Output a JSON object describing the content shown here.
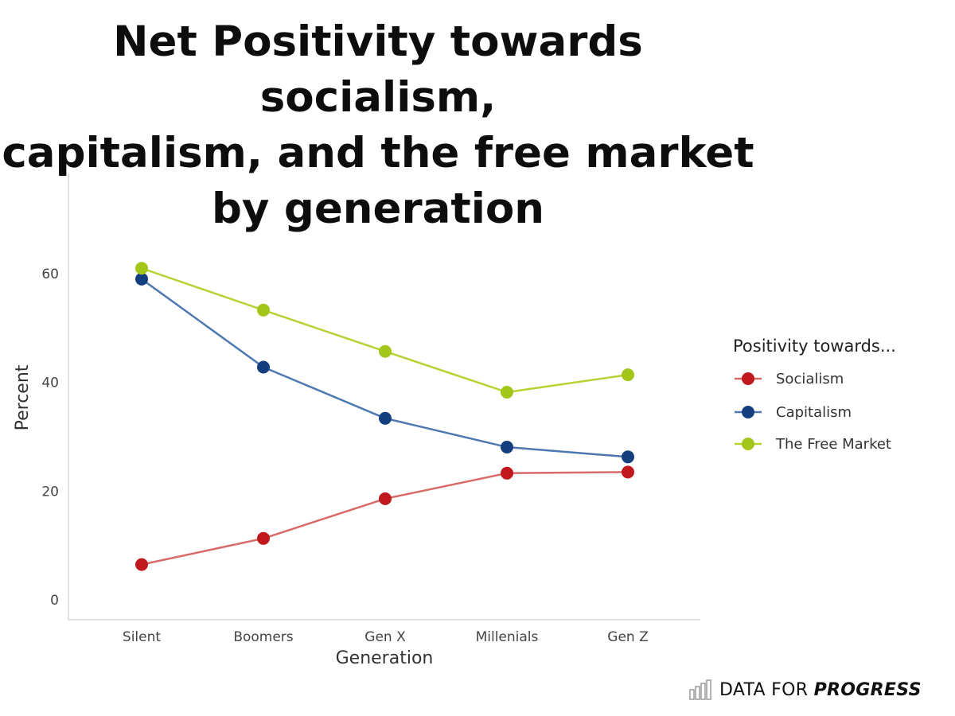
{
  "chart_data": {
    "type": "line",
    "title_lines": [
      "Net Positivity towards socialism,",
      "capitalism, and the free market",
      "by generation"
    ],
    "xlabel": "Generation",
    "ylabel": "Percent",
    "categories": [
      "Silent",
      "Boomers",
      "Gen X",
      "Millenials",
      "Gen Z"
    ],
    "ylim": [
      0,
      80
    ],
    "yticks": [
      0,
      20,
      40,
      60
    ],
    "grid": false,
    "legend": {
      "title": "Positivity towards...",
      "placement": "right"
    },
    "series": [
      {
        "name": "Socialism",
        "color": "#c0181d",
        "line_color": "#d86a6a",
        "values": [
          6.5,
          11.3,
          18.6,
          23.3,
          23.5
        ]
      },
      {
        "name": "Capitalism",
        "color": "#143f7f",
        "line_color": "#4e78b0",
        "values": [
          59,
          42.8,
          33.4,
          28.1,
          26.3
        ]
      },
      {
        "name": "The Free Market",
        "color": "#a4c61a",
        "line_color": "#b5d334",
        "values": [
          61,
          53.3,
          45.7,
          38.2,
          41.4
        ]
      }
    ]
  },
  "branding": {
    "prefix": "DATA FOR",
    "emphasis": "PROGRESS",
    "icon": "bar-chart-icon"
  }
}
